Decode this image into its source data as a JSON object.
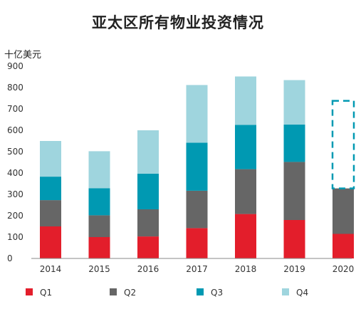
{
  "chart_data": {
    "type": "bar",
    "stacked": true,
    "title": "亚太区所有物业投资情况",
    "ylabel": "十亿美元",
    "xlabel": "",
    "ylim": [
      0,
      900
    ],
    "yticks": [
      0,
      100,
      200,
      300,
      400,
      500,
      600,
      700,
      800,
      900
    ],
    "grid": false,
    "legend_position": "bottom",
    "categories": [
      "2014",
      "2015",
      "2016",
      "2017",
      "2018",
      "2019",
      "2020"
    ],
    "series": [
      {
        "name": "Q1",
        "color": "#e31e2b",
        "values": [
          150,
          100,
          103,
          142,
          208,
          180,
          115
        ]
      },
      {
        "name": "Q2",
        "color": "#666666",
        "values": [
          123,
          102,
          127,
          175,
          210,
          272,
          213
        ]
      },
      {
        "name": "Q3",
        "color": "#0099b2",
        "values": [
          110,
          127,
          167,
          225,
          207,
          175,
          null
        ]
      },
      {
        "name": "Q4",
        "color": "#9fd5de",
        "values": [
          167,
          173,
          203,
          270,
          227,
          208,
          null
        ]
      }
    ],
    "projection": {
      "category": "2020",
      "base": 328,
      "top": 738,
      "style": "dashed",
      "color": "#0099b2"
    }
  }
}
